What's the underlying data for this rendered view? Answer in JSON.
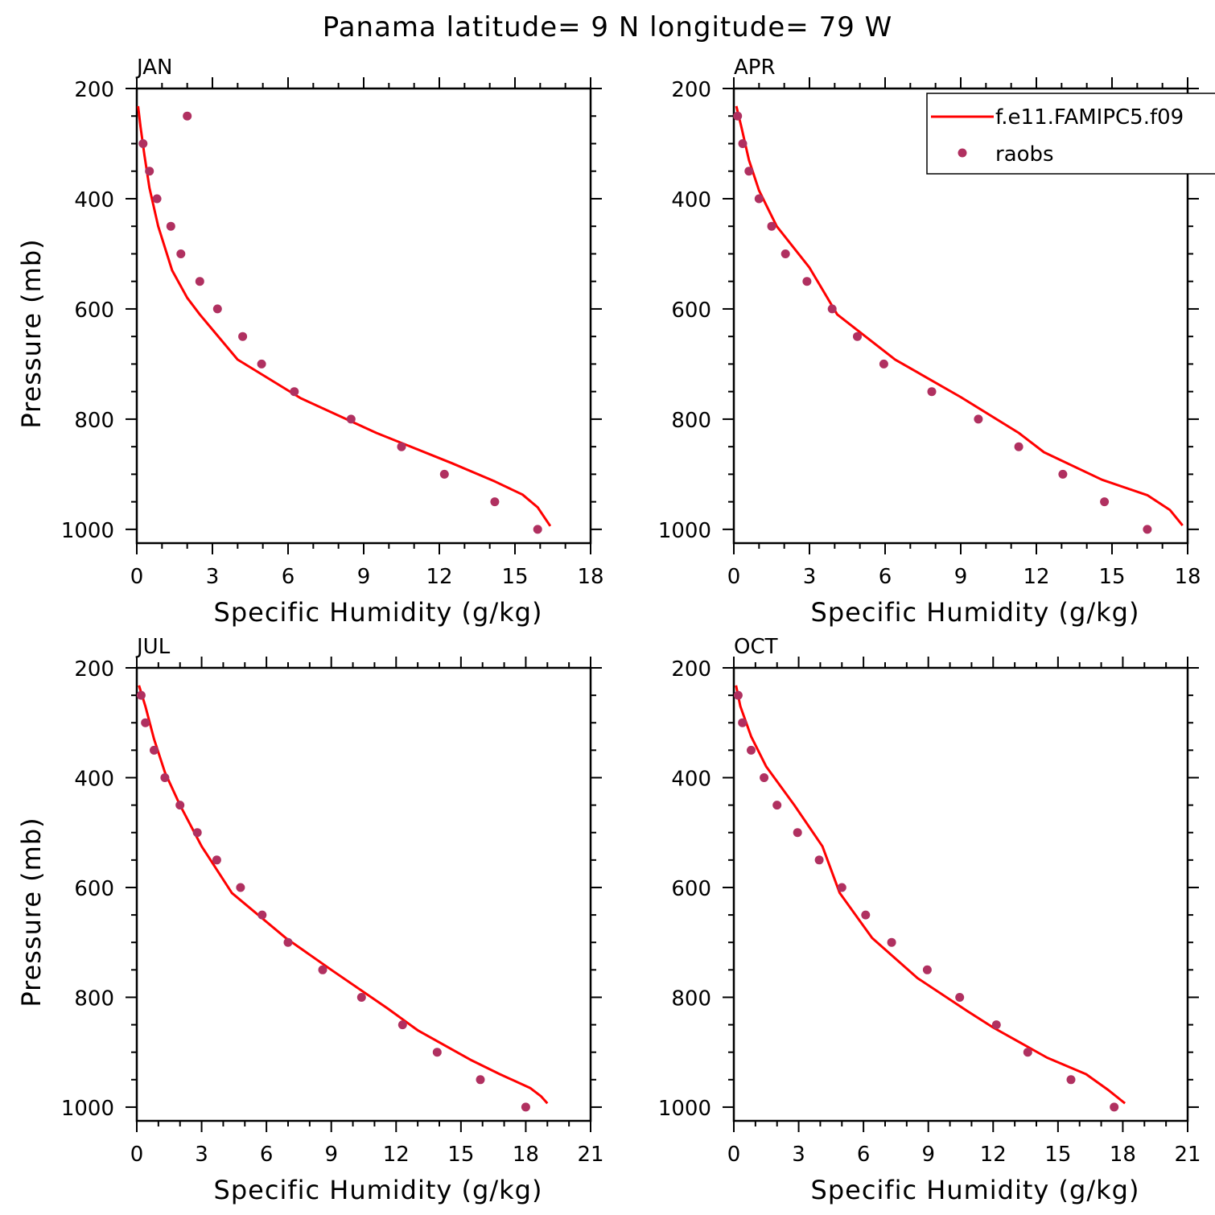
{
  "title": "Panama  latitude= 9 N longitude= 79 W",
  "colors": {
    "model_line": "#ff0000",
    "obs_marker": "#b03060",
    "frame": "#000000"
  },
  "legend": {
    "entries": [
      "f.e11.FAMIPC5.f09",
      "raobs"
    ]
  },
  "chart_data": [
    {
      "type": "line",
      "panel": "JAN",
      "xlabel": "Specific Humidity (g/kg)",
      "ylabel": "Pressure (mb)",
      "xlim": [
        0,
        18
      ],
      "xticks": [
        0,
        3,
        6,
        9,
        12,
        15,
        18
      ],
      "ylim": [
        1025,
        200
      ],
      "yticks": [
        200,
        400,
        600,
        800,
        1000
      ],
      "series": [
        {
          "name": "f.e11.FAMIPC5.f09",
          "kind": "line",
          "x": [
            0.05,
            0.15,
            0.3,
            0.5,
            0.85,
            1.4,
            2.0,
            2.5,
            4.0,
            6.5,
            9.5,
            12.5,
            14.2,
            15.3,
            15.9,
            16.4
          ],
          "y": [
            232,
            270,
            320,
            380,
            450,
            530,
            580,
            610,
            692,
            762,
            825,
            880,
            913,
            937,
            960,
            994
          ]
        },
        {
          "name": "raobs",
          "kind": "scatter",
          "x": [
            2.0,
            0.25,
            0.5,
            0.8,
            1.35,
            1.75,
            2.5,
            3.2,
            4.2,
            4.95,
            6.25,
            8.5,
            10.5,
            12.2,
            14.2,
            15.9
          ],
          "y": [
            250,
            300,
            350,
            400,
            450,
            500,
            550,
            600,
            650,
            700,
            750,
            800,
            850,
            900,
            950,
            1000
          ]
        }
      ]
    },
    {
      "type": "line",
      "panel": "APR",
      "xlabel": "Specific Humidity (g/kg)",
      "ylabel": "",
      "xlim": [
        0,
        18
      ],
      "xticks": [
        0,
        3,
        6,
        9,
        12,
        15,
        18
      ],
      "ylim": [
        1025,
        200
      ],
      "yticks": [
        200,
        400,
        600,
        800,
        1000
      ],
      "series": [
        {
          "name": "f.e11.FAMIPC5.f09",
          "kind": "line",
          "x": [
            0.1,
            0.3,
            0.6,
            1.0,
            1.7,
            3.0,
            4.1,
            6.4,
            9.0,
            11.3,
            12.3,
            14.6,
            16.4,
            17.3,
            17.8
          ],
          "y": [
            232,
            270,
            330,
            385,
            450,
            525,
            610,
            692,
            760,
            825,
            860,
            910,
            938,
            965,
            993
          ]
        },
        {
          "name": "raobs",
          "kind": "scatter",
          "x": [
            0.15,
            0.35,
            0.6,
            1.0,
            1.5,
            2.05,
            2.9,
            3.9,
            4.9,
            5.95,
            7.85,
            9.7,
            11.3,
            13.05,
            14.7,
            16.4
          ],
          "y": [
            250,
            300,
            350,
            400,
            450,
            500,
            550,
            600,
            650,
            700,
            750,
            800,
            850,
            900,
            950,
            1000
          ]
        }
      ]
    },
    {
      "type": "line",
      "panel": "JUL",
      "xlabel": "Specific Humidity (g/kg)",
      "ylabel": "Pressure (mb)",
      "xlim": [
        0,
        21
      ],
      "xticks": [
        0,
        3,
        6,
        9,
        12,
        15,
        18,
        21
      ],
      "ylim": [
        1025,
        200
      ],
      "yticks": [
        200,
        400,
        600,
        800,
        1000
      ],
      "series": [
        {
          "name": "f.e11.FAMIPC5.f09",
          "kind": "line",
          "x": [
            0.1,
            0.4,
            0.8,
            1.3,
            2.0,
            3.0,
            4.4,
            6.9,
            9.0,
            11.6,
            13.0,
            15.5,
            16.8,
            18.2,
            18.7,
            19.0
          ],
          "y": [
            232,
            270,
            330,
            390,
            450,
            525,
            610,
            692,
            750,
            820,
            860,
            915,
            940,
            965,
            980,
            993
          ]
        },
        {
          "name": "raobs",
          "kind": "scatter",
          "x": [
            0.2,
            0.4,
            0.8,
            1.3,
            2.0,
            2.8,
            3.7,
            4.8,
            5.8,
            7.0,
            8.6,
            10.4,
            12.3,
            13.9,
            15.9,
            18.0
          ],
          "y": [
            250,
            300,
            350,
            400,
            450,
            500,
            550,
            600,
            650,
            700,
            750,
            800,
            850,
            900,
            950,
            1000
          ]
        }
      ]
    },
    {
      "type": "line",
      "panel": "OCT",
      "xlabel": "Specific Humidity (g/kg)",
      "ylabel": "",
      "xlim": [
        0,
        21
      ],
      "xticks": [
        0,
        3,
        6,
        9,
        12,
        15,
        18,
        21
      ],
      "ylim": [
        1025,
        200
      ],
      "yticks": [
        200,
        400,
        600,
        800,
        1000
      ],
      "series": [
        {
          "name": "f.e11.FAMIPC5.f09",
          "kind": "line",
          "x": [
            0.1,
            0.3,
            0.8,
            1.5,
            2.8,
            4.1,
            4.9,
            6.4,
            8.5,
            10.8,
            12.0,
            14.5,
            16.3,
            17.3,
            18.1
          ],
          "y": [
            232,
            270,
            325,
            380,
            450,
            525,
            610,
            692,
            765,
            825,
            855,
            910,
            940,
            968,
            993
          ]
        },
        {
          "name": "raobs",
          "kind": "scatter",
          "x": [
            0.2,
            0.4,
            0.8,
            1.4,
            2.0,
            2.95,
            3.95,
            5.0,
            6.1,
            7.3,
            8.95,
            10.45,
            12.15,
            13.6,
            15.6,
            17.6
          ],
          "y": [
            250,
            300,
            350,
            400,
            450,
            500,
            550,
            600,
            650,
            700,
            750,
            800,
            850,
            900,
            950,
            1000
          ]
        }
      ]
    }
  ]
}
